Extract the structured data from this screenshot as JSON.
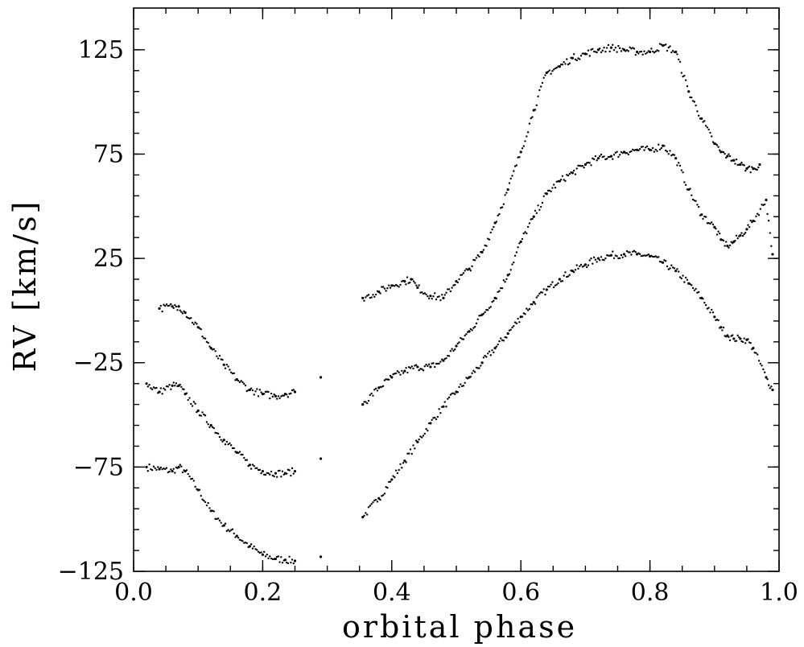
{
  "chart_data": {
    "type": "scatter",
    "title": "",
    "xlabel": "orbital phase",
    "ylabel": "RV [km/s]",
    "xlim": [
      0.0,
      1.0
    ],
    "ylim": [
      -125,
      145
    ],
    "grid": false,
    "legend": "none",
    "x_major_ticks": [
      0.0,
      0.2,
      0.4,
      0.6,
      0.8,
      1.0
    ],
    "x_tick_labels": [
      "0.0",
      "0.2",
      "0.4",
      "0.6",
      "0.8",
      "1.0"
    ],
    "x_minor_step": 0.05,
    "y_major_ticks": [
      -125,
      -75,
      -25,
      25,
      75,
      125
    ],
    "y_tick_labels": [
      "−125",
      "−75",
      "−25",
      "25",
      "75",
      "125"
    ],
    "y_minor_step": 10,
    "marker_color": "#000000",
    "series": [
      {
        "points": [
          [
            0.02,
            -75
          ],
          [
            0.04,
            -76
          ],
          [
            0.06,
            -77
          ],
          [
            0.07,
            -75
          ],
          [
            0.08,
            -77
          ],
          [
            0.1,
            -86
          ],
          [
            0.12,
            -96
          ],
          [
            0.14,
            -103
          ],
          [
            0.16,
            -108
          ],
          [
            0.18,
            -113
          ],
          [
            0.2,
            -117
          ],
          [
            0.22,
            -119
          ],
          [
            0.235,
            -119.5
          ],
          [
            0.25,
            -120
          ],
          [
            0.29,
            -118
          ],
          [
            0.355,
            -99
          ],
          [
            0.38,
            -90
          ],
          [
            0.4,
            -81
          ],
          [
            0.42,
            -72
          ],
          [
            0.44,
            -63
          ],
          [
            0.46,
            -54
          ],
          [
            0.48,
            -46
          ],
          [
            0.5,
            -39
          ],
          [
            0.52,
            -32
          ],
          [
            0.54,
            -25
          ],
          [
            0.56,
            -18
          ],
          [
            0.58,
            -11
          ],
          [
            0.6,
            -3
          ],
          [
            0.62,
            4
          ],
          [
            0.64,
            10
          ],
          [
            0.66,
            15
          ],
          [
            0.68,
            19
          ],
          [
            0.7,
            22
          ],
          [
            0.72,
            25
          ],
          [
            0.74,
            26.5
          ],
          [
            0.76,
            27
          ],
          [
            0.78,
            27
          ],
          [
            0.8,
            26
          ],
          [
            0.82,
            23
          ],
          [
            0.84,
            19
          ],
          [
            0.86,
            13
          ],
          [
            0.88,
            6
          ],
          [
            0.9,
            -3
          ],
          [
            0.91,
            -8
          ],
          [
            0.92,
            -12
          ],
          [
            0.93,
            -13.5
          ],
          [
            0.94,
            -13.5
          ],
          [
            0.95,
            -14
          ],
          [
            0.96,
            -18
          ],
          [
            0.98,
            -32
          ],
          [
            0.99,
            -38
          ]
        ]
      },
      {
        "points": [
          [
            0.02,
            -35
          ],
          [
            0.04,
            -39
          ],
          [
            0.06,
            -36
          ],
          [
            0.07,
            -36
          ],
          [
            0.08,
            -40
          ],
          [
            0.1,
            -48
          ],
          [
            0.12,
            -55
          ],
          [
            0.14,
            -62
          ],
          [
            0.16,
            -68
          ],
          [
            0.18,
            -74
          ],
          [
            0.2,
            -77
          ],
          [
            0.22,
            -78
          ],
          [
            0.235,
            -78
          ],
          [
            0.25,
            -77
          ],
          [
            0.29,
            -71
          ],
          [
            0.355,
            -45
          ],
          [
            0.38,
            -37
          ],
          [
            0.4,
            -32
          ],
          [
            0.42,
            -29
          ],
          [
            0.44,
            -27
          ],
          [
            0.46,
            -27
          ],
          [
            0.48,
            -24
          ],
          [
            0.5,
            -17
          ],
          [
            0.52,
            -10
          ],
          [
            0.54,
            -2
          ],
          [
            0.56,
            6
          ],
          [
            0.58,
            17
          ],
          [
            0.6,
            33
          ],
          [
            0.62,
            45
          ],
          [
            0.64,
            56
          ],
          [
            0.66,
            62
          ],
          [
            0.68,
            66
          ],
          [
            0.7,
            70
          ],
          [
            0.72,
            73
          ],
          [
            0.74,
            74
          ],
          [
            0.76,
            76
          ],
          [
            0.78,
            77
          ],
          [
            0.8,
            77
          ],
          [
            0.82,
            79
          ],
          [
            0.84,
            73
          ],
          [
            0.86,
            58
          ],
          [
            0.88,
            46
          ],
          [
            0.9,
            40
          ],
          [
            0.91,
            34
          ],
          [
            0.92,
            31
          ],
          [
            0.93,
            33
          ],
          [
            0.94,
            36
          ],
          [
            0.95,
            39
          ],
          [
            0.96,
            43
          ],
          [
            0.98,
            53
          ],
          [
            0.99,
            27
          ]
        ]
      },
      {
        "points": [
          [
            0.04,
            1
          ],
          [
            0.06,
            2
          ],
          [
            0.07,
            2
          ],
          [
            0.08,
            -1
          ],
          [
            0.1,
            -8
          ],
          [
            0.12,
            -18
          ],
          [
            0.14,
            -26
          ],
          [
            0.16,
            -33
          ],
          [
            0.18,
            -38
          ],
          [
            0.2,
            -40
          ],
          [
            0.22,
            -41
          ],
          [
            0.235,
            -40
          ],
          [
            0.25,
            -39
          ],
          [
            0.29,
            -32
          ],
          [
            0.355,
            6
          ],
          [
            0.38,
            9
          ],
          [
            0.4,
            12
          ],
          [
            0.42,
            14
          ],
          [
            0.43,
            15
          ],
          [
            0.44,
            11
          ],
          [
            0.46,
            7
          ],
          [
            0.48,
            6
          ],
          [
            0.5,
            14
          ],
          [
            0.52,
            20
          ],
          [
            0.54,
            28
          ],
          [
            0.56,
            42
          ],
          [
            0.58,
            58
          ],
          [
            0.6,
            76
          ],
          [
            0.62,
            96
          ],
          [
            0.64,
            114
          ],
          [
            0.66,
            117
          ],
          [
            0.68,
            121
          ],
          [
            0.7,
            123
          ],
          [
            0.72,
            125
          ],
          [
            0.74,
            126
          ],
          [
            0.76,
            125
          ],
          [
            0.78,
            124
          ],
          [
            0.8,
            124
          ],
          [
            0.82,
            127
          ],
          [
            0.84,
            124
          ],
          [
            0.86,
            105
          ],
          [
            0.88,
            92
          ],
          [
            0.9,
            80
          ],
          [
            0.91,
            76
          ],
          [
            0.92,
            74
          ],
          [
            0.93,
            72
          ],
          [
            0.94,
            70
          ],
          [
            0.95,
            68
          ],
          [
            0.96,
            68
          ],
          [
            0.97,
            70
          ]
        ]
      }
    ]
  }
}
